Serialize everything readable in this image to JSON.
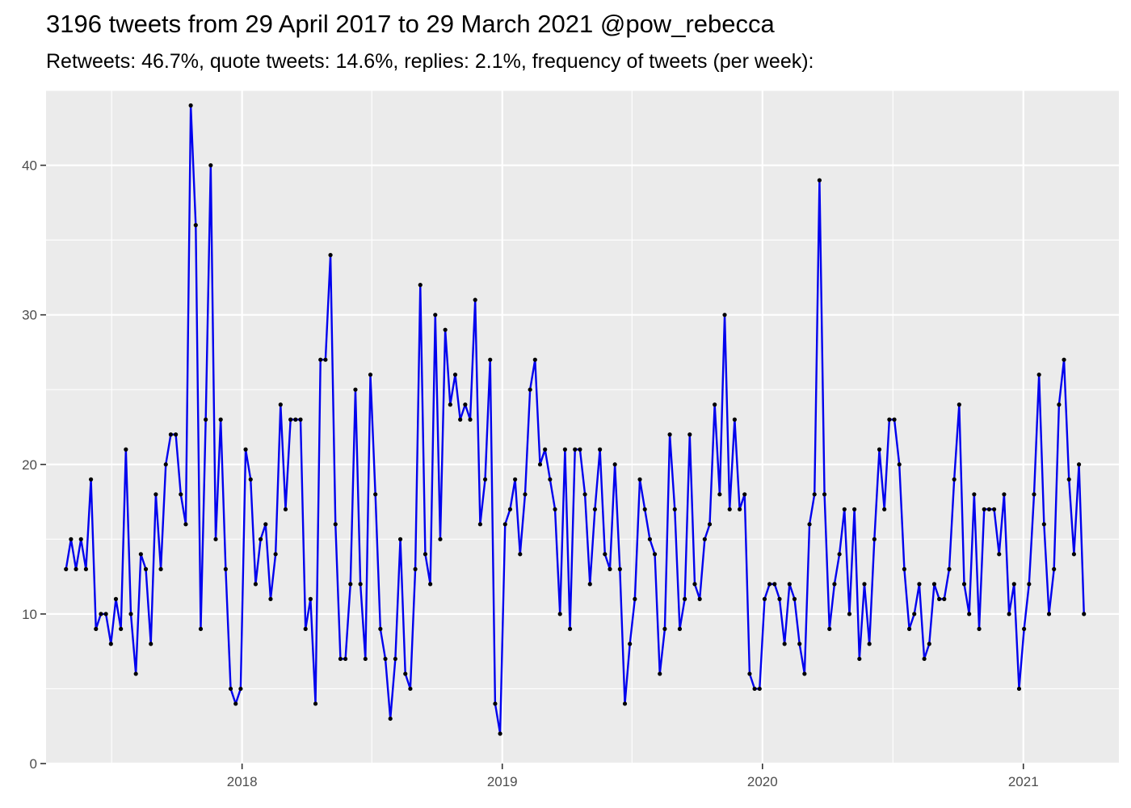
{
  "chart_data": {
    "type": "line",
    "title": "3196 tweets from 29 April 2017 to 29 March 2021 @pow_rebecca",
    "subtitle": "Retweets: 46.7%, quote tweets: 14.6%, replies: 2.1%, frequency of tweets (per week):",
    "xlabel": "",
    "ylabel": "",
    "x_start": "2017-04-29",
    "x_step_days": 7,
    "xlim": [
      "2017-04-01",
      "2021-05-15"
    ],
    "ylim": [
      0,
      45
    ],
    "x_ticks": [
      "2018",
      "2019",
      "2020",
      "2021"
    ],
    "y_ticks": [
      0,
      10,
      20,
      30,
      40
    ],
    "grid": true,
    "line_color": "#0000ee",
    "point_color": "#000000",
    "panel_color": "#ebebeb",
    "values": [
      13,
      15,
      13,
      15,
      13,
      19,
      9,
      10,
      10,
      8,
      11,
      9,
      21,
      10,
      6,
      14,
      13,
      8,
      18,
      13,
      20,
      22,
      22,
      18,
      16,
      44,
      36,
      9,
      23,
      40,
      15,
      23,
      13,
      5,
      4,
      5,
      21,
      19,
      12,
      15,
      16,
      11,
      14,
      24,
      17,
      23,
      23,
      23,
      9,
      11,
      4,
      27,
      27,
      34,
      16,
      7,
      7,
      12,
      25,
      12,
      7,
      26,
      18,
      9,
      7,
      3,
      7,
      15,
      6,
      5,
      13,
      32,
      14,
      12,
      30,
      15,
      29,
      24,
      26,
      23,
      24,
      23,
      31,
      16,
      19,
      27,
      4,
      2,
      16,
      17,
      19,
      14,
      18,
      25,
      27,
      20,
      21,
      19,
      17,
      10,
      21,
      9,
      21,
      21,
      18,
      12,
      17,
      21,
      14,
      13,
      20,
      13,
      4,
      8,
      11,
      19,
      17,
      15,
      14,
      6,
      9,
      22,
      17,
      9,
      11,
      22,
      12,
      11,
      15,
      16,
      24,
      18,
      30,
      17,
      23,
      17,
      18,
      6,
      5,
      5,
      11,
      12,
      12,
      11,
      8,
      12,
      11,
      8,
      6,
      16,
      18,
      39,
      18,
      9,
      12,
      14,
      17,
      10,
      17,
      7,
      12,
      8,
      15,
      21,
      17,
      23,
      23,
      20,
      13,
      9,
      10,
      12,
      7,
      8,
      12,
      11,
      11,
      13,
      19,
      24,
      12,
      10,
      18,
      9,
      17,
      17,
      17,
      14,
      18,
      10,
      12,
      5,
      9,
      12,
      18,
      26,
      16,
      10,
      13,
      24,
      27,
      19,
      14,
      20,
      10
    ]
  }
}
